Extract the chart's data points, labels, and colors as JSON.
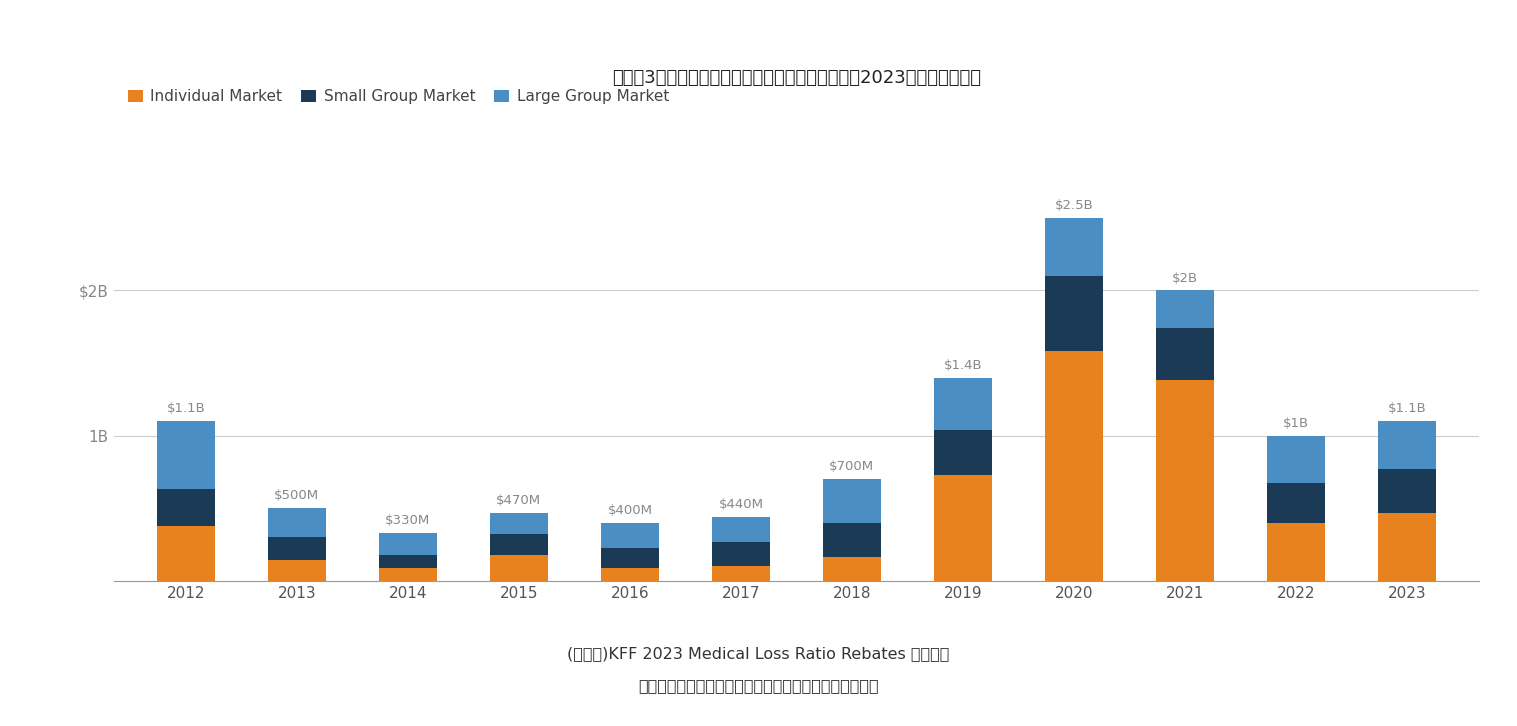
{
  "full_title": "【図袅3：メディカル・ロスレシオ還付金の推移（2023年は見通し）】",
  "years": [
    2012,
    2013,
    2014,
    2015,
    2016,
    2017,
    2018,
    2019,
    2020,
    2021,
    2022,
    2023
  ],
  "totals_labels": [
    "$1.1B",
    "$500M",
    "$330M",
    "$470M",
    "$400M",
    "$440M",
    "$700M",
    "$1.4B",
    "$2.5B",
    "$2B",
    "$1B",
    "$1.1B"
  ],
  "totals_values": [
    1.1,
    0.5,
    0.33,
    0.47,
    0.4,
    0.44,
    0.7,
    1.4,
    2.5,
    2.0,
    1.0,
    1.1
  ],
  "individual": [
    0.38,
    0.145,
    0.085,
    0.175,
    0.085,
    0.105,
    0.165,
    0.73,
    1.58,
    1.38,
    0.395,
    0.465
  ],
  "small_group": [
    0.255,
    0.16,
    0.092,
    0.15,
    0.14,
    0.162,
    0.23,
    0.31,
    0.52,
    0.36,
    0.278,
    0.305
  ],
  "color_individual": "#E8821E",
  "color_small_group": "#1B3A56",
  "color_large_group": "#4A8EC4",
  "legend_individual": "Individual Market",
  "legend_small": "Small Group Market",
  "legend_large": "Large Group Market",
  "source_line1": "(資　料)KFF 2023 Medical Loss Ratio Rebates より引用",
  "source_line2": "オレンジ色は個人、濃紺は小企業、青色は大企業の内訳",
  "bg_color": "#FFFFFF"
}
